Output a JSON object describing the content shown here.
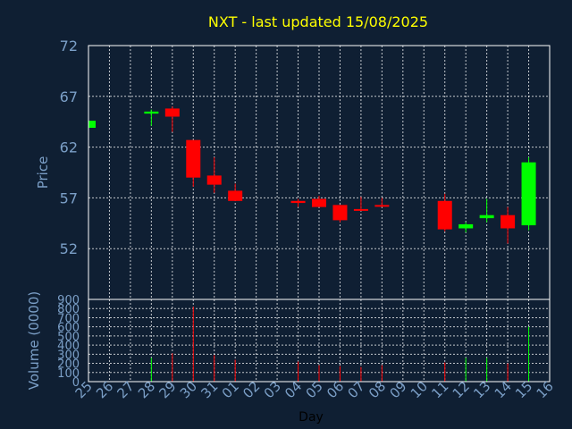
{
  "chart_data": [
    {
      "type": "candlestick",
      "title": "NXT - last updated 15/08/2025",
      "ylabel": "Price",
      "ylim": [
        47,
        72
      ],
      "yticks": [
        52,
        57,
        62,
        67,
        72
      ],
      "grid": true,
      "colors": {
        "up": "#00ff00",
        "down": "#ff0000"
      },
      "candles": [
        {
          "day": "25",
          "open": 63.9,
          "high": 64.6,
          "low": 63.9,
          "close": 64.6
        },
        {
          "day": "28",
          "open": 65.3,
          "high": 65.7,
          "low": 64.1,
          "close": 65.5
        },
        {
          "day": "29",
          "open": 65.8,
          "high": 66.0,
          "low": 63.5,
          "close": 65.0
        },
        {
          "day": "30",
          "open": 62.7,
          "high": 62.7,
          "low": 58.1,
          "close": 59.0
        },
        {
          "day": "31",
          "open": 59.2,
          "high": 61.0,
          "low": 57.5,
          "close": 58.3
        },
        {
          "day": "01",
          "open": 57.7,
          "high": 58.4,
          "low": 56.7,
          "close": 56.7
        },
        {
          "day": "04",
          "open": 56.7,
          "high": 56.9,
          "low": 56.1,
          "close": 56.5
        },
        {
          "day": "05",
          "open": 56.9,
          "high": 57.2,
          "low": 56.1,
          "close": 56.1
        },
        {
          "day": "06",
          "open": 56.3,
          "high": 56.3,
          "low": 54.6,
          "close": 54.8
        },
        {
          "day": "07",
          "open": 55.9,
          "high": 57.1,
          "low": 55.7,
          "close": 55.8
        },
        {
          "day": "08",
          "open": 56.3,
          "high": 57.0,
          "low": 56.1,
          "close": 56.2
        },
        {
          "day": "11",
          "open": 56.7,
          "high": 57.4,
          "low": 53.7,
          "close": 53.9
        },
        {
          "day": "12",
          "open": 54.0,
          "high": 54.6,
          "low": 53.6,
          "close": 54.4
        },
        {
          "day": "13",
          "open": 55.0,
          "high": 56.9,
          "low": 54.6,
          "close": 55.3
        },
        {
          "day": "14",
          "open": 55.3,
          "high": 56.1,
          "low": 52.5,
          "close": 54.0
        },
        {
          "day": "15",
          "open": 54.3,
          "high": 61.0,
          "low": 53.8,
          "close": 60.5
        }
      ]
    },
    {
      "type": "bar",
      "ylabel": "Volume (0000)",
      "ylim": [
        0,
        900
      ],
      "yticks": [
        0,
        100,
        200,
        300,
        400,
        500,
        600,
        700,
        800,
        900
      ],
      "xlabel": "Day",
      "categories": [
        "25",
        "26",
        "27",
        "28",
        "29",
        "30",
        "31",
        "01",
        "02",
        "03",
        "04",
        "05",
        "06",
        "07",
        "08",
        "09",
        "10",
        "11",
        "12",
        "13",
        "14",
        "15",
        "16"
      ],
      "values": [
        0,
        0,
        0,
        260,
        310,
        820,
        290,
        240,
        0,
        0,
        220,
        180,
        170,
        160,
        180,
        0,
        0,
        210,
        260,
        260,
        200,
        600,
        0
      ],
      "direction": [
        "up",
        "",
        "",
        "up",
        "down",
        "down",
        "down",
        "down",
        "",
        "",
        "down",
        "down",
        "down",
        "down",
        "down",
        "",
        "",
        "down",
        "up",
        "up",
        "down",
        "up",
        ""
      ]
    }
  ]
}
